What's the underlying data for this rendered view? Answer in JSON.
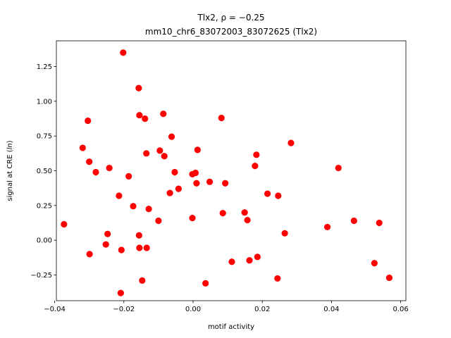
{
  "chart_data": {
    "type": "scatter",
    "title_line1": "Tlx2, ρ = −0.25",
    "title_line2": "mm10_chr6_83072003_83072625 (Tlx2)",
    "xlabel": "motif activity",
    "ylabel_prefix": "signal at CRE (",
    "ylabel_italic": "ln",
    "ylabel_suffix": ")",
    "xlim": [
      -0.0395,
      0.0615
    ],
    "ylim": [
      -0.435,
      1.435
    ],
    "xticks": [
      -0.04,
      -0.02,
      0.0,
      0.02,
      0.04,
      0.06
    ],
    "xtick_labels": [
      "−0.04",
      "−0.02",
      "0.00",
      "0.02",
      "0.04",
      "0.06"
    ],
    "yticks": [
      -0.25,
      0.0,
      0.25,
      0.5,
      0.75,
      1.0,
      1.25
    ],
    "ytick_labels": [
      "−0.25",
      "0.00",
      "0.25",
      "0.50",
      "0.75",
      "1.00",
      "1.25"
    ],
    "grid": false,
    "marker_color": "#ff0000",
    "points": [
      {
        "x": -0.0373,
        "y": 0.115
      },
      {
        "x": -0.0319,
        "y": 0.665
      },
      {
        "x": -0.0304,
        "y": 0.86
      },
      {
        "x": -0.03,
        "y": 0.565
      },
      {
        "x": -0.0299,
        "y": -0.1
      },
      {
        "x": -0.0281,
        "y": 0.49
      },
      {
        "x": -0.0252,
        "y": -0.03
      },
      {
        "x": -0.0247,
        "y": 0.045
      },
      {
        "x": -0.0242,
        "y": 0.52
      },
      {
        "x": -0.0214,
        "y": 0.32
      },
      {
        "x": -0.0207,
        "y": -0.07
      },
      {
        "x": -0.0209,
        "y": -0.38
      },
      {
        "x": -0.0202,
        "y": 1.35
      },
      {
        "x": -0.0186,
        "y": 0.46
      },
      {
        "x": -0.0173,
        "y": 0.245
      },
      {
        "x": -0.0157,
        "y": 1.095
      },
      {
        "x": -0.0155,
        "y": 0.9
      },
      {
        "x": -0.0156,
        "y": 0.035
      },
      {
        "x": -0.0155,
        "y": -0.055
      },
      {
        "x": -0.0147,
        "y": -0.29
      },
      {
        "x": -0.0139,
        "y": 0.875
      },
      {
        "x": -0.0135,
        "y": 0.625
      },
      {
        "x": -0.0134,
        "y": -0.055
      },
      {
        "x": -0.0128,
        "y": 0.225
      },
      {
        "x": -0.01,
        "y": 0.14
      },
      {
        "x": -0.0096,
        "y": 0.645
      },
      {
        "x": -0.0086,
        "y": 0.91
      },
      {
        "x": -0.0083,
        "y": 0.605
      },
      {
        "x": -0.0067,
        "y": 0.34
      },
      {
        "x": -0.0062,
        "y": 0.745
      },
      {
        "x": -0.0053,
        "y": 0.49
      },
      {
        "x": -0.0042,
        "y": 0.37
      },
      {
        "x": -0.0002,
        "y": 0.475
      },
      {
        "x": -0.0002,
        "y": 0.16
      },
      {
        "x": 0.0007,
        "y": 0.485
      },
      {
        "x": 0.001,
        "y": 0.41
      },
      {
        "x": 0.0013,
        "y": 0.65
      },
      {
        "x": 0.0036,
        "y": -0.31
      },
      {
        "x": 0.0048,
        "y": 0.42
      },
      {
        "x": 0.0082,
        "y": 0.88
      },
      {
        "x": 0.0086,
        "y": 0.195
      },
      {
        "x": 0.0093,
        "y": 0.41
      },
      {
        "x": 0.0112,
        "y": -0.155
      },
      {
        "x": 0.0149,
        "y": 0.2
      },
      {
        "x": 0.0157,
        "y": 0.145
      },
      {
        "x": 0.0163,
        "y": -0.145
      },
      {
        "x": 0.0179,
        "y": 0.535
      },
      {
        "x": 0.0183,
        "y": 0.615
      },
      {
        "x": 0.0186,
        "y": -0.12
      },
      {
        "x": 0.0215,
        "y": 0.335
      },
      {
        "x": 0.0244,
        "y": -0.275
      },
      {
        "x": 0.0246,
        "y": 0.32
      },
      {
        "x": 0.0265,
        "y": 0.05
      },
      {
        "x": 0.0283,
        "y": 0.7
      },
      {
        "x": 0.0388,
        "y": 0.095
      },
      {
        "x": 0.042,
        "y": 0.52
      },
      {
        "x": 0.0465,
        "y": 0.14
      },
      {
        "x": 0.0524,
        "y": -0.165
      },
      {
        "x": 0.0538,
        "y": 0.125
      },
      {
        "x": 0.0567,
        "y": -0.27
      }
    ]
  }
}
